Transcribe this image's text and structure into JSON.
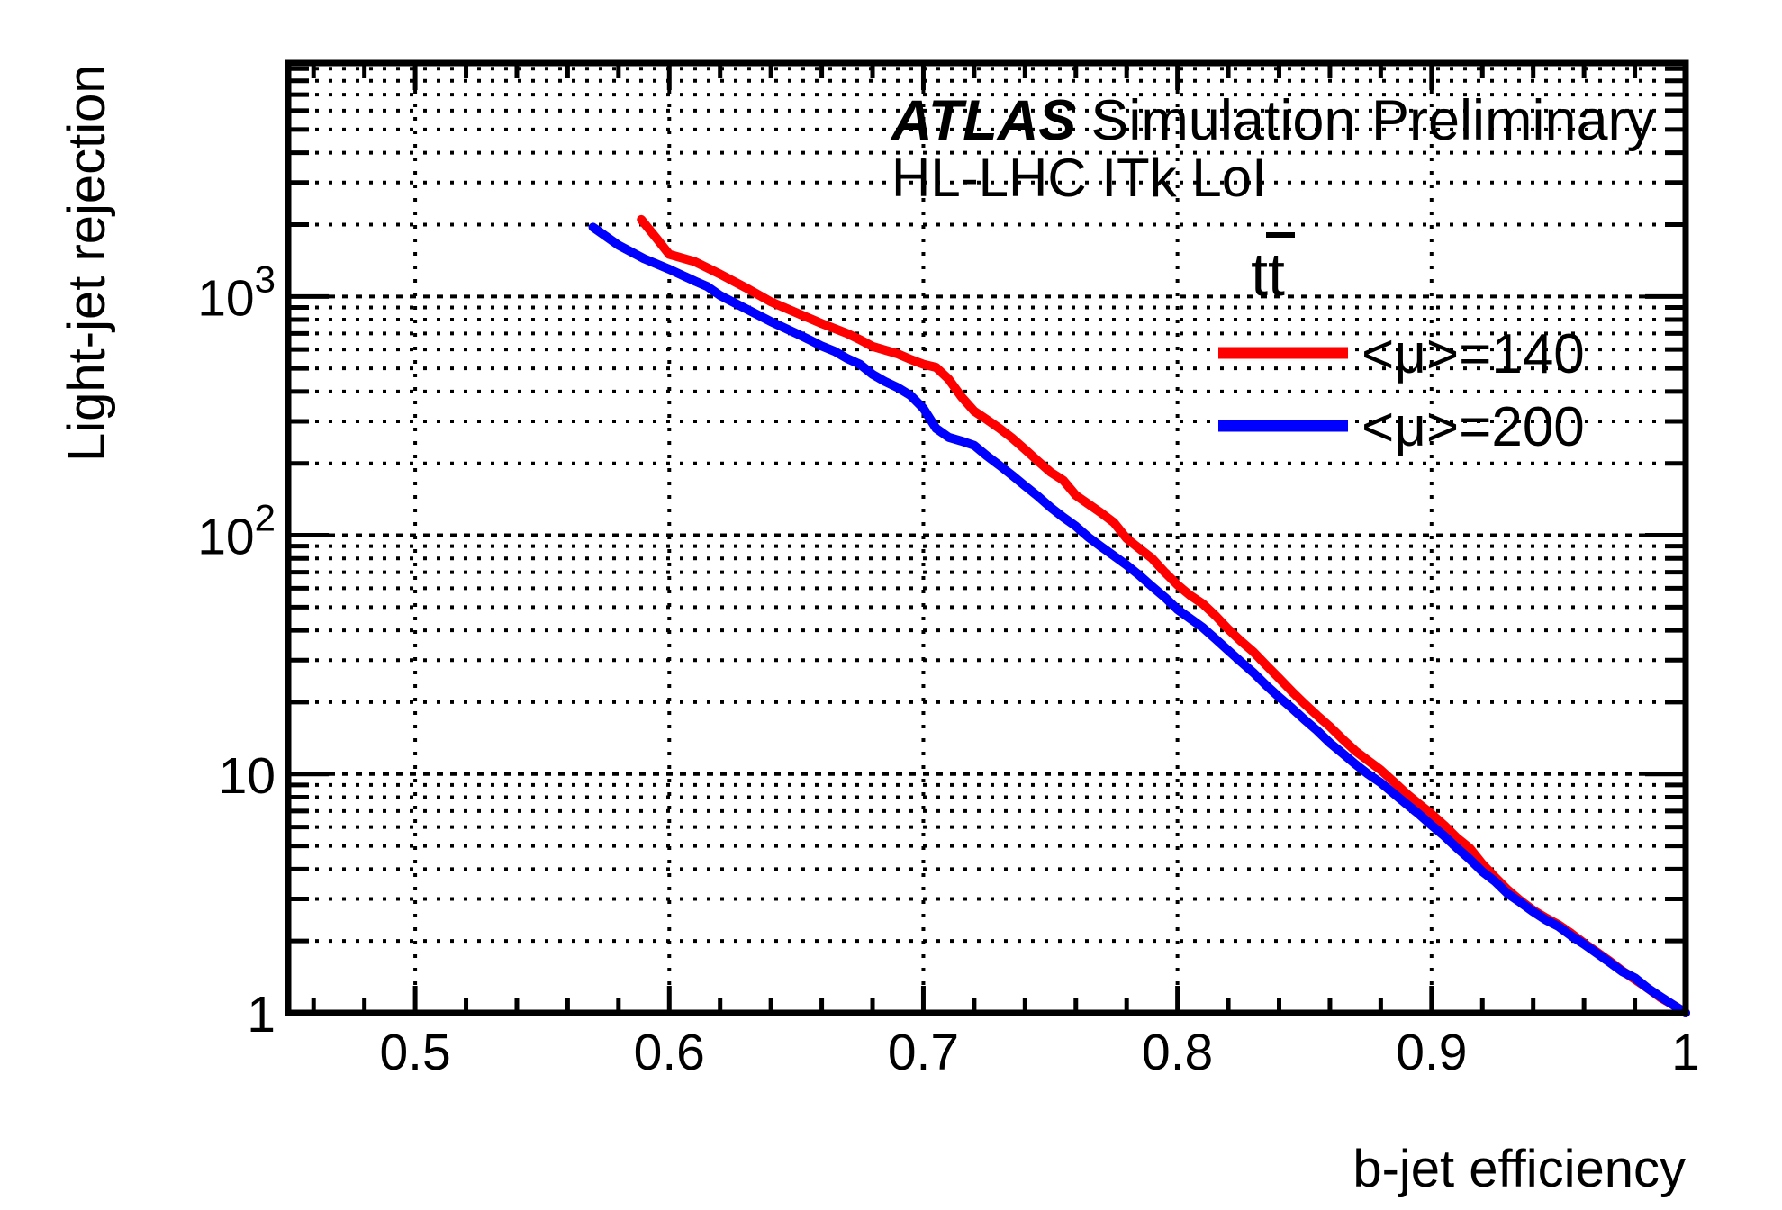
{
  "figure": {
    "background": "#ffffff",
    "title_atlas": "ATLAS",
    "title_rest": "Simulation Preliminary",
    "subtitle": "HL-LHC ITk LoI",
    "process_label": "tt",
    "process_label_overline_on_second_char": true
  },
  "colors": {
    "mu140": "#ff0000",
    "mu200": "#0000ff",
    "axis": "#000000",
    "grid": "#000000",
    "background": "#ffffff"
  },
  "chart_data": {
    "type": "line",
    "title": "ATLAS Simulation Preliminary — HL-LHC ITk LoI — ttbar",
    "xlabel": "b-jet efficiency",
    "ylabel": "Light-jet rejection",
    "x_axis": {
      "min": 0.45,
      "max": 1.0,
      "scale": "linear",
      "major_ticks": [
        0.5,
        0.6,
        0.7,
        0.8,
        0.9,
        1.0
      ],
      "major_tick_labels": [
        "0.5",
        "0.6",
        "0.7",
        "0.8",
        "0.9",
        "1"
      ],
      "minor_tick_step": 0.02,
      "grid": "dotted vertical lines at major ticks"
    },
    "y_axis": {
      "min": 1,
      "max": 9500,
      "scale": "log",
      "major_ticks": [
        1,
        10,
        100,
        1000
      ],
      "major_tick_labels": [
        {
          "value": 1,
          "text": "1"
        },
        {
          "value": 10,
          "text": "10"
        },
        {
          "value": 100,
          "base": "10",
          "exp": "2"
        },
        {
          "value": 1000,
          "base": "10",
          "exp": "3"
        }
      ],
      "minor_ticks": "2-9 within each decade",
      "grid": "dotted horizontal lines at every decade subdivision"
    },
    "legend": {
      "position": "top-right",
      "header": "tt (overline on second t)",
      "entries": [
        {
          "label": "<μ>=140",
          "color": "#ff0000"
        },
        {
          "label": "<μ>=200",
          "color": "#0000ff"
        }
      ]
    },
    "series": [
      {
        "name": "<μ>=140",
        "color": "#ff0000",
        "points": [
          [
            0.589,
            2100
          ],
          [
            0.595,
            1750
          ],
          [
            0.6,
            1500
          ],
          [
            0.61,
            1400
          ],
          [
            0.62,
            1240
          ],
          [
            0.63,
            1090
          ],
          [
            0.64,
            950
          ],
          [
            0.65,
            855
          ],
          [
            0.66,
            770
          ],
          [
            0.67,
            700
          ],
          [
            0.675,
            660
          ],
          [
            0.68,
            618
          ],
          [
            0.69,
            575
          ],
          [
            0.695,
            545
          ],
          [
            0.7,
            520
          ],
          [
            0.705,
            505
          ],
          [
            0.71,
            450
          ],
          [
            0.715,
            380
          ],
          [
            0.72,
            331
          ],
          [
            0.725,
            305
          ],
          [
            0.73,
            280
          ],
          [
            0.735,
            255
          ],
          [
            0.74,
            229
          ],
          [
            0.745,
            205
          ],
          [
            0.75,
            184
          ],
          [
            0.755,
            170
          ],
          [
            0.76,
            147
          ],
          [
            0.765,
            135
          ],
          [
            0.77,
            124
          ],
          [
            0.775,
            113
          ],
          [
            0.78,
            97
          ],
          [
            0.785,
            88
          ],
          [
            0.79,
            80
          ],
          [
            0.795,
            70
          ],
          [
            0.8,
            62
          ],
          [
            0.805,
            56
          ],
          [
            0.81,
            51.6
          ],
          [
            0.815,
            46
          ],
          [
            0.82,
            40.4
          ],
          [
            0.825,
            36
          ],
          [
            0.83,
            32.4
          ],
          [
            0.835,
            28.5
          ],
          [
            0.84,
            25.2
          ],
          [
            0.845,
            22.2
          ],
          [
            0.85,
            19.7
          ],
          [
            0.855,
            17.6
          ],
          [
            0.86,
            15.8
          ],
          [
            0.865,
            14.0
          ],
          [
            0.87,
            12.5
          ],
          [
            0.875,
            11.4
          ],
          [
            0.88,
            10.4
          ],
          [
            0.885,
            9.3
          ],
          [
            0.89,
            8.3
          ],
          [
            0.895,
            7.5
          ],
          [
            0.9,
            6.8
          ],
          [
            0.905,
            6.1
          ],
          [
            0.91,
            5.4
          ],
          [
            0.915,
            4.9
          ],
          [
            0.92,
            4.2
          ],
          [
            0.925,
            3.7
          ],
          [
            0.93,
            3.27
          ],
          [
            0.935,
            2.95
          ],
          [
            0.94,
            2.69
          ],
          [
            0.945,
            2.5
          ],
          [
            0.95,
            2.34
          ],
          [
            0.955,
            2.15
          ],
          [
            0.96,
            1.96
          ],
          [
            0.965,
            1.8
          ],
          [
            0.97,
            1.65
          ],
          [
            0.975,
            1.5
          ],
          [
            0.98,
            1.38
          ],
          [
            0.985,
            1.27
          ],
          [
            0.99,
            1.16
          ],
          [
            0.995,
            1.08
          ],
          [
            1.0,
            1.0
          ]
        ]
      },
      {
        "name": "<μ>=200",
        "color": "#0000ff",
        "points": [
          [
            0.57,
            1950
          ],
          [
            0.58,
            1640
          ],
          [
            0.59,
            1440
          ],
          [
            0.6,
            1300
          ],
          [
            0.61,
            1160
          ],
          [
            0.615,
            1100
          ],
          [
            0.62,
            1010
          ],
          [
            0.63,
            890
          ],
          [
            0.64,
            785
          ],
          [
            0.65,
            700
          ],
          [
            0.655,
            660
          ],
          [
            0.66,
            620
          ],
          [
            0.665,
            590
          ],
          [
            0.67,
            550
          ],
          [
            0.675,
            520
          ],
          [
            0.68,
            472
          ],
          [
            0.685,
            440
          ],
          [
            0.69,
            415
          ],
          [
            0.695,
            385
          ],
          [
            0.7,
            340
          ],
          [
            0.705,
            280
          ],
          [
            0.71,
            257
          ],
          [
            0.715,
            248
          ],
          [
            0.72,
            238
          ],
          [
            0.725,
            215
          ],
          [
            0.73,
            196
          ],
          [
            0.735,
            178
          ],
          [
            0.74,
            161
          ],
          [
            0.745,
            146
          ],
          [
            0.75,
            131
          ],
          [
            0.755,
            119
          ],
          [
            0.76,
            109
          ],
          [
            0.765,
            98
          ],
          [
            0.77,
            89.5
          ],
          [
            0.775,
            82
          ],
          [
            0.78,
            75
          ],
          [
            0.785,
            68
          ],
          [
            0.79,
            61
          ],
          [
            0.795,
            55
          ],
          [
            0.8,
            48.9
          ],
          [
            0.805,
            44.8
          ],
          [
            0.81,
            41
          ],
          [
            0.815,
            36.8
          ],
          [
            0.82,
            32.9
          ],
          [
            0.825,
            29.5
          ],
          [
            0.83,
            26.5
          ],
          [
            0.835,
            23.5
          ],
          [
            0.84,
            21.0
          ],
          [
            0.845,
            18.9
          ],
          [
            0.85,
            16.9
          ],
          [
            0.855,
            15.2
          ],
          [
            0.86,
            13.5
          ],
          [
            0.865,
            12.2
          ],
          [
            0.87,
            11.0
          ],
          [
            0.875,
            10.0
          ],
          [
            0.88,
            9.2
          ],
          [
            0.885,
            8.3
          ],
          [
            0.89,
            7.5
          ],
          [
            0.895,
            6.8
          ],
          [
            0.9,
            6.1
          ],
          [
            0.905,
            5.5
          ],
          [
            0.91,
            4.9
          ],
          [
            0.915,
            4.4
          ],
          [
            0.92,
            3.9
          ],
          [
            0.925,
            3.55
          ],
          [
            0.93,
            3.15
          ],
          [
            0.935,
            2.9
          ],
          [
            0.94,
            2.65
          ],
          [
            0.945,
            2.45
          ],
          [
            0.95,
            2.3
          ],
          [
            0.955,
            2.1
          ],
          [
            0.96,
            1.94
          ],
          [
            0.965,
            1.78
          ],
          [
            0.97,
            1.63
          ],
          [
            0.975,
            1.49
          ],
          [
            0.98,
            1.4
          ],
          [
            0.985,
            1.27
          ],
          [
            0.99,
            1.17
          ],
          [
            0.995,
            1.08
          ],
          [
            1.0,
            1.0
          ]
        ]
      }
    ]
  }
}
